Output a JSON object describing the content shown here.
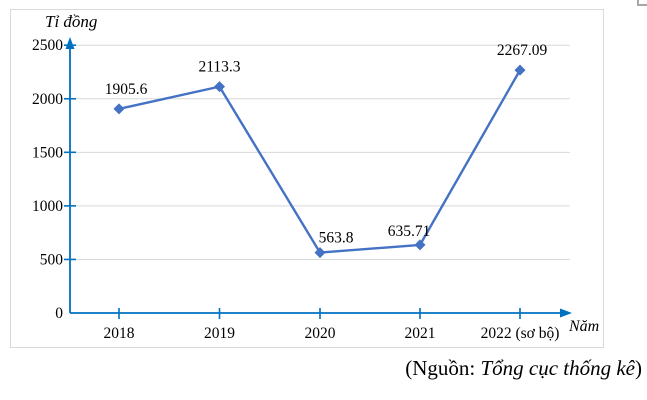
{
  "figure": {
    "y_axis_title": "Tỉ đồng",
    "x_axis_title": "Năm"
  },
  "source_note": {
    "prefix": "(Nguồn: ",
    "name": "Tổng cục thống kê",
    "suffix": ")"
  },
  "colors": {
    "series": "#4472c4",
    "axis": "#0070c0",
    "gridline": "#d9d9d9",
    "frame_border": "#d9d9d9",
    "corner_mark": "#a6a6a6",
    "text": "#000000"
  },
  "chart_data": {
    "type": "line",
    "title": "",
    "xlabel": "Năm",
    "ylabel": "Tỉ đồng",
    "categories": [
      "2018",
      "2019",
      "2020",
      "2021",
      "2022 (sơ bộ)"
    ],
    "values": [
      1905.6,
      2113.3,
      563.8,
      635.71,
      2267.09
    ],
    "point_labels": [
      "1905.6",
      "2113.3",
      "563.8",
      "635.71",
      "2267.09"
    ],
    "series_name": "",
    "y_ticks": [
      0,
      500,
      1000,
      1500,
      2000,
      2500
    ],
    "ylim": [
      0,
      2500
    ],
    "grid": true,
    "legend": false,
    "marker": "diamond",
    "axes_have_arrows": true
  }
}
